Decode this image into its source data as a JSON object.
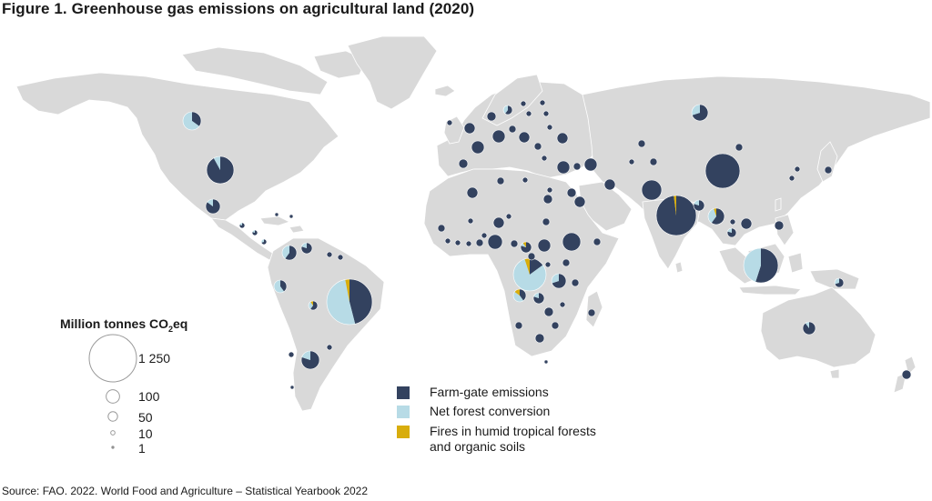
{
  "title": "Figure 1. Greenhouse gas emissions on agricultural land (2020)",
  "source": "Source: FAO. 2022. World Food and Agriculture – Statistical Yearbook 2022",
  "colors": {
    "land": "#d9d9d9",
    "ocean": "#ffffff",
    "farm_gate": "#33425f",
    "net_forest": "#b7dbe6",
    "fires": "#d8ad0c"
  },
  "size_legend": {
    "title_main": "Million tonnes CO",
    "title_sub": "2",
    "title_end": "eq",
    "entries": [
      {
        "label": "1 250",
        "value": 1250
      },
      {
        "label": "100",
        "value": 100
      },
      {
        "label": "50",
        "value": 50
      },
      {
        "label": "10",
        "value": 10
      },
      {
        "label": "1",
        "value": 1
      }
    ]
  },
  "legend": [
    {
      "label": "Farm-gate emissions",
      "color": "#33425f"
    },
    {
      "label": "Net forest conversion",
      "color": "#b7dbe6"
    },
    {
      "label": "Fires in humid tropical forests",
      "label2": "and organic soils",
      "color": "#d8ad0c"
    }
  ]
}
